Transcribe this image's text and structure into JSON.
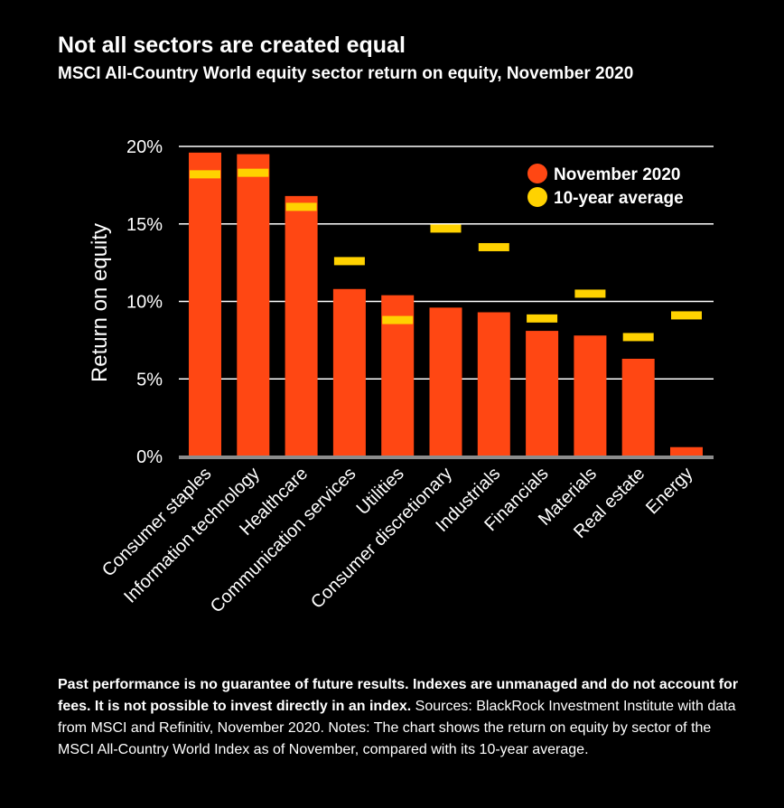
{
  "header": {
    "title": "Not all sectors are created equal",
    "subtitle": "MSCI All-Country World equity sector return on equity, November 2020"
  },
  "footnote": {
    "bold_text": "Past performance is no guarantee of future results. Indexes are unmanaged and do not account for fees. It is not possible to invest directly in an index.",
    "text": " Sources: BlackRock Investment Institute with data from MSCI and Refinitiv, November 2020. Notes: The chart shows the return on equity by sector of the MSCI All-Country World Index as of November, compared with its 10-year average."
  },
  "colors": {
    "background": "#000000",
    "bar": "#ff4713",
    "average_marker": "#ffd200",
    "text": "#ffffff",
    "axis": "#8c8c8c"
  },
  "chart_data": {
    "type": "bar",
    "ylabel": "Return on equity",
    "ylim": [
      0,
      20
    ],
    "yticks": [
      0,
      5,
      10,
      15,
      20
    ],
    "ytick_labels": [
      "0%",
      "5%",
      "10%",
      "15%",
      "20%"
    ],
    "grid": true,
    "legend_position": "top-right",
    "categories": [
      "Consumer staples",
      "Information technology",
      "Healthcare",
      "Communication services",
      "Utilities",
      "Consumer discretionary",
      "Industrials",
      "Financials",
      "Materials",
      "Real estate",
      "Energy"
    ],
    "series": [
      {
        "name": "November 2020",
        "type": "bar",
        "values": [
          19.6,
          19.5,
          16.8,
          10.8,
          10.4,
          9.6,
          9.3,
          8.1,
          7.8,
          6.3,
          0.6
        ]
      },
      {
        "name": "10-year average",
        "type": "marker",
        "values": [
          18.2,
          18.3,
          16.1,
          12.6,
          8.8,
          14.7,
          13.5,
          8.9,
          10.5,
          7.7,
          9.1
        ]
      }
    ]
  }
}
